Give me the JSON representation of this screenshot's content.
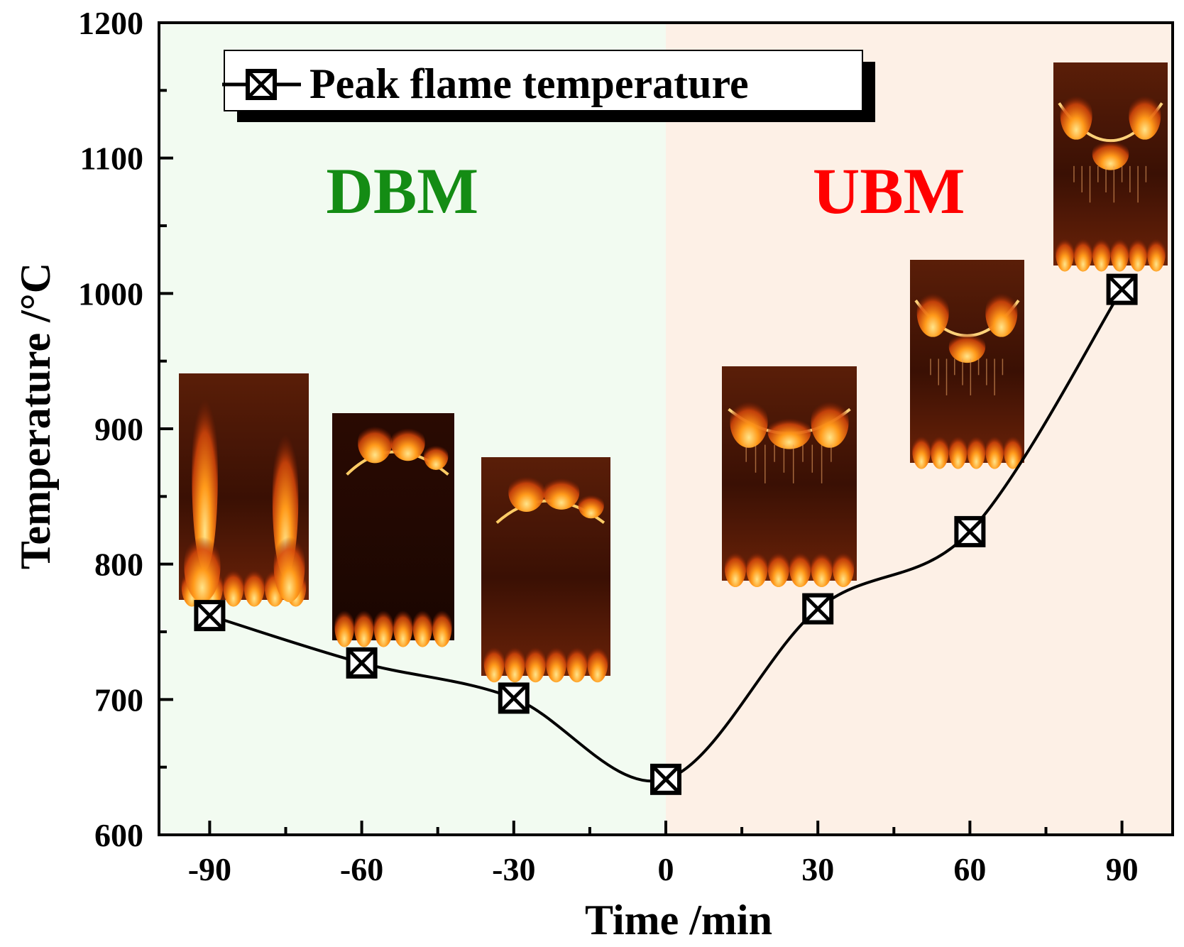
{
  "chart_data": {
    "type": "line",
    "xlabel": "Time /min",
    "ylabel": "Temperature /°C",
    "xlim": [
      -100,
      100
    ],
    "ylim": [
      600,
      1200
    ],
    "xticks": [
      -90,
      -60,
      -30,
      0,
      30,
      60,
      90
    ],
    "xtick_labels": [
      "-90",
      "-60",
      "-30",
      "0",
      "30",
      "60",
      "90"
    ],
    "yticks": [
      600,
      700,
      800,
      900,
      1000,
      1100,
      1200
    ],
    "ytick_labels": [
      "600",
      "700",
      "800",
      "900",
      "1000",
      "1100",
      "1200"
    ],
    "grid": false,
    "legend_position": "top-left",
    "series": [
      {
        "name": "Peak flame temperature",
        "marker": "square-with-x",
        "smooth": true,
        "color": "#000000",
        "x": [
          -90,
          -60,
          -30,
          0,
          30,
          60,
          90
        ],
        "y": [
          762,
          727,
          701,
          641,
          767,
          824,
          1003
        ]
      }
    ],
    "regions": [
      {
        "label": "DBM",
        "x_range": [
          -100,
          0
        ],
        "fill": "#f2fbf1",
        "label_color": "#148c14"
      },
      {
        "label": "UBM",
        "x_range": [
          0,
          100
        ],
        "fill": "#fdf0e6",
        "label_color": "#ff0000"
      }
    ],
    "inset_photos": [
      {
        "x": -90,
        "subject": "flame-photo",
        "shape": "vertical-walls"
      },
      {
        "x": -60,
        "subject": "flame-photo",
        "shape": "arch-top"
      },
      {
        "x": -30,
        "subject": "flame-photo",
        "shape": "arch-bottom"
      },
      {
        "x": 30,
        "subject": "flame-photo",
        "shape": "v-dip"
      },
      {
        "x": 60,
        "subject": "flame-photo",
        "shape": "u-shape"
      },
      {
        "x": 90,
        "subject": "flame-photo",
        "shape": "u-deep"
      }
    ]
  }
}
